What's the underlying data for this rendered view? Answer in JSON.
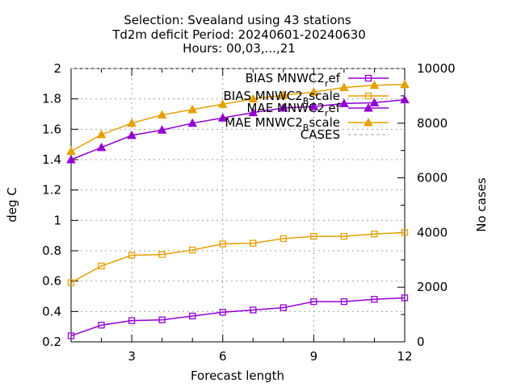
{
  "chart_data": {
    "type": "line",
    "title_lines": [
      "Selection: Svealand using    43 stations",
      "Td2m deficit   Period: 20240601-20240630",
      "Hours: 00,03,...,21"
    ],
    "xlabel": "Forecast length",
    "ylabel": "deg C",
    "y2label": "No cases",
    "xlim": [
      1,
      12
    ],
    "ylim": [
      0.2,
      2.0
    ],
    "y2lim": [
      0,
      10000
    ],
    "x_ticks": [
      3,
      6,
      9,
      12
    ],
    "y_ticks": [
      0.2,
      0.4,
      0.6,
      0.8,
      1,
      1.2,
      1.4,
      1.6,
      1.8,
      2
    ],
    "y_tick_labels": [
      "0.2",
      "0.4",
      "0.6",
      "0.8",
      "1",
      "1.2",
      "1.4",
      "1.6",
      "1.8",
      "2"
    ],
    "y2_ticks": [
      0,
      2000,
      4000,
      6000,
      8000,
      10000
    ],
    "grid": true,
    "legend_position": "top-right",
    "x": [
      1,
      2,
      3,
      4,
      5,
      6,
      7,
      8,
      9,
      10,
      11,
      12
    ],
    "series": [
      {
        "legend_main": "BIAS MNWC2",
        "legend_sub": "r",
        "legend_tail": "ef",
        "color": "#9400d3",
        "marker": "square",
        "axis": "y1",
        "values": [
          0.24,
          0.31,
          0.34,
          0.345,
          0.37,
          0.395,
          0.41,
          0.425,
          0.465,
          0.465,
          0.48,
          0.49
        ]
      },
      {
        "legend_main": "BIAS MNWC2",
        "legend_sub": "B",
        "legend_tail": "scale",
        "color": "#e69f00",
        "marker": "square",
        "axis": "y1",
        "values": [
          0.59,
          0.7,
          0.77,
          0.775,
          0.805,
          0.845,
          0.85,
          0.88,
          0.895,
          0.895,
          0.91,
          0.92
        ]
      },
      {
        "legend_main": "MAE MNWC2",
        "legend_sub": "r",
        "legend_tail": "ef",
        "color": "#9400d3",
        "marker": "triangle",
        "axis": "y1",
        "values": [
          1.4,
          1.48,
          1.56,
          1.595,
          1.64,
          1.675,
          1.71,
          1.74,
          1.75,
          1.77,
          1.775,
          1.795
        ]
      },
      {
        "legend_main": "MAE MNWC2",
        "legend_sub": "B",
        "legend_tail": "scale",
        "color": "#e69f00",
        "marker": "triangle",
        "axis": "y1",
        "values": [
          1.455,
          1.565,
          1.64,
          1.695,
          1.73,
          1.765,
          1.8,
          1.825,
          1.845,
          1.875,
          1.89,
          1.895
        ]
      },
      {
        "legend_main": "CASES",
        "legend_sub": "",
        "legend_tail": "",
        "color": "#a0a0a0",
        "marker": "none",
        "dashed": true,
        "axis": "y2",
        "values": [
          10000,
          10000,
          10000,
          10000,
          10000,
          10000,
          10000,
          10000,
          10000,
          10000,
          10000,
          10000
        ]
      }
    ]
  }
}
